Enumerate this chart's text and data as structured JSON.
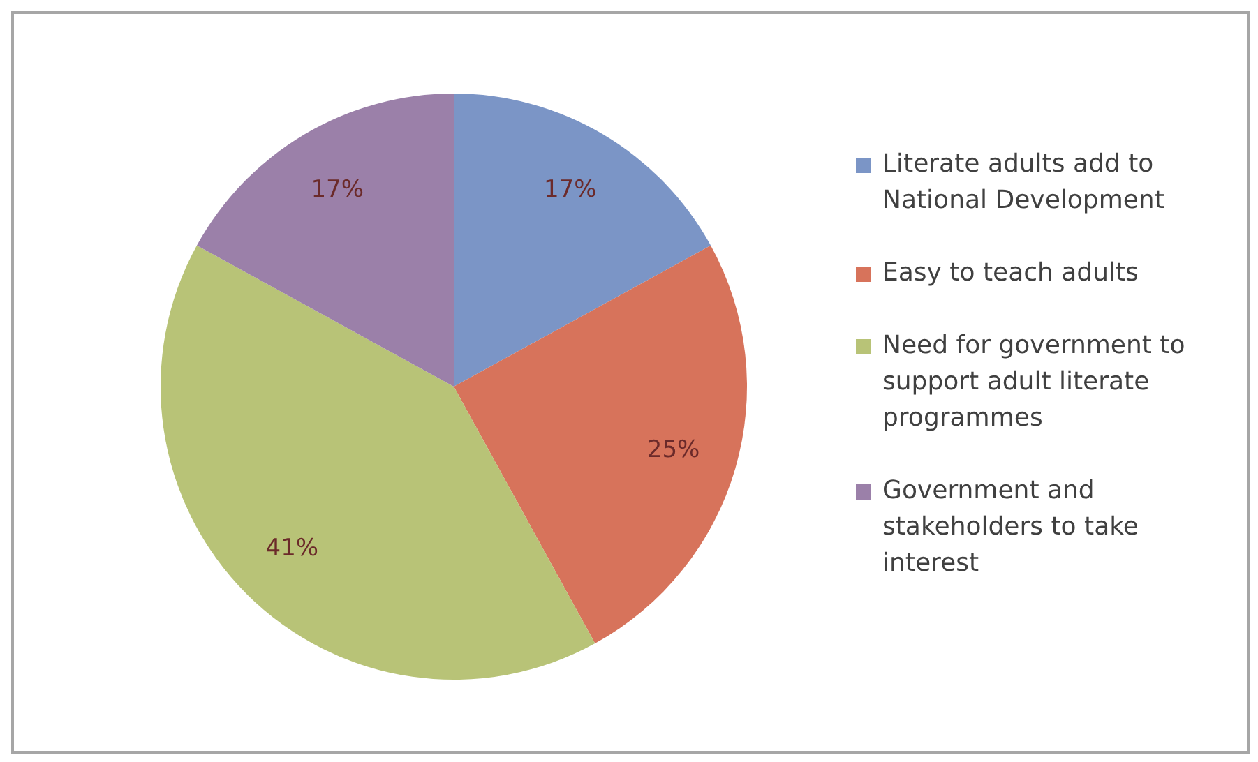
{
  "chart_data": {
    "type": "pie",
    "categories": [
      "Literate adults add to National Development",
      "Easy to teach adults",
      "Need for government to support adult literate programmes",
      "Government and stakeholders to take interest"
    ],
    "values": [
      17,
      25,
      41,
      17
    ],
    "colors": [
      "#7b95c6",
      "#d7735b",
      "#b8c377",
      "#9b80a9"
    ],
    "value_labels": [
      "17%",
      "25%",
      "41%",
      "17%"
    ],
    "legend": "right"
  }
}
